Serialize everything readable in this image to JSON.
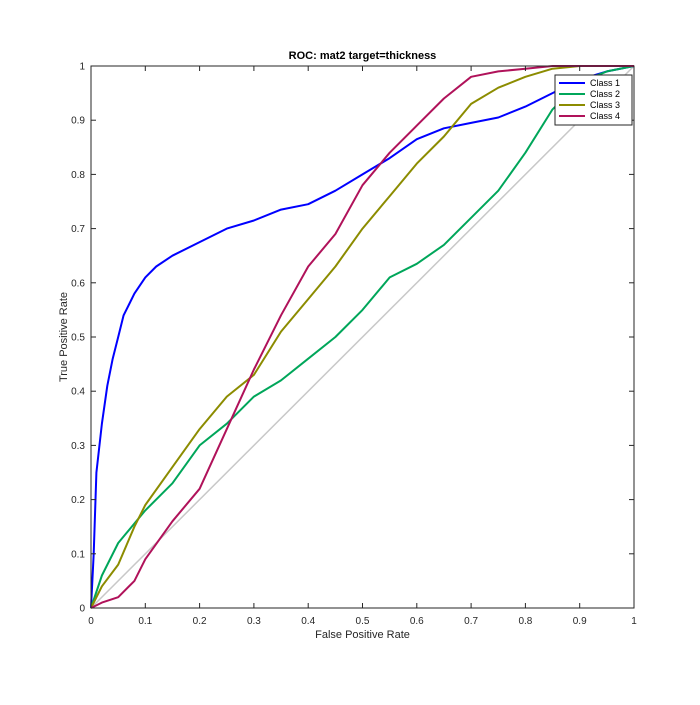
{
  "chart_data": {
    "type": "line",
    "title": "ROC: mat2 target=thickness",
    "xlabel": "False Positive Rate",
    "ylabel": "True Positive Rate",
    "xlim": [
      0,
      1
    ],
    "ylim": [
      0,
      1
    ],
    "xticks": [
      0,
      0.1,
      0.2,
      0.3,
      0.4,
      0.5,
      0.6,
      0.7,
      0.8,
      0.9,
      1
    ],
    "yticks": [
      0,
      0.1,
      0.2,
      0.3,
      0.4,
      0.5,
      0.6,
      0.7,
      0.8,
      0.9,
      1
    ],
    "xtick_labels": [
      "0",
      "0.1",
      "0.2",
      "0.3",
      "0.4",
      "0.5",
      "0.6",
      "0.7",
      "0.8",
      "0.9",
      "1"
    ],
    "ytick_labels": [
      "0",
      "0.1",
      "0.2",
      "0.3",
      "0.4",
      "0.5",
      "0.6",
      "0.7",
      "0.8",
      "0.9",
      "1"
    ],
    "grid": false,
    "legend_position": "top-right",
    "reference_line": {
      "x": [
        0,
        1
      ],
      "y": [
        0,
        1
      ],
      "color": "#c8c8c8"
    },
    "series": [
      {
        "name": "Class 1",
        "color": "#0000ff",
        "x": [
          0,
          0.005,
          0.01,
          0.02,
          0.03,
          0.04,
          0.05,
          0.06,
          0.07,
          0.08,
          0.1,
          0.12,
          0.15,
          0.2,
          0.25,
          0.3,
          0.35,
          0.4,
          0.45,
          0.5,
          0.55,
          0.6,
          0.65,
          0.7,
          0.75,
          0.8,
          0.85,
          0.9,
          0.95,
          1
        ],
        "y": [
          0,
          0.1,
          0.25,
          0.34,
          0.41,
          0.46,
          0.5,
          0.54,
          0.56,
          0.58,
          0.61,
          0.63,
          0.65,
          0.675,
          0.7,
          0.715,
          0.735,
          0.745,
          0.77,
          0.8,
          0.83,
          0.865,
          0.885,
          0.895,
          0.905,
          0.925,
          0.95,
          0.975,
          0.99,
          1
        ]
      },
      {
        "name": "Class 2",
        "color": "#00a65a",
        "x": [
          0,
          0.02,
          0.05,
          0.1,
          0.15,
          0.2,
          0.25,
          0.3,
          0.35,
          0.4,
          0.45,
          0.5,
          0.55,
          0.6,
          0.65,
          0.7,
          0.75,
          0.8,
          0.85,
          0.9,
          0.95,
          1
        ],
        "y": [
          0,
          0.06,
          0.12,
          0.18,
          0.23,
          0.3,
          0.34,
          0.39,
          0.42,
          0.46,
          0.5,
          0.55,
          0.61,
          0.635,
          0.67,
          0.72,
          0.77,
          0.84,
          0.92,
          0.97,
          0.99,
          1
        ]
      },
      {
        "name": "Class 3",
        "color": "#8c8c00",
        "x": [
          0,
          0.02,
          0.05,
          0.08,
          0.1,
          0.15,
          0.2,
          0.25,
          0.3,
          0.35,
          0.4,
          0.45,
          0.5,
          0.55,
          0.6,
          0.65,
          0.7,
          0.75,
          0.8,
          0.85,
          0.9,
          0.95,
          1
        ],
        "y": [
          0,
          0.04,
          0.08,
          0.15,
          0.19,
          0.26,
          0.33,
          0.39,
          0.43,
          0.51,
          0.57,
          0.63,
          0.7,
          0.76,
          0.82,
          0.87,
          0.93,
          0.96,
          0.98,
          0.995,
          1,
          1,
          1
        ]
      },
      {
        "name": "Class 4",
        "color": "#b0125a",
        "x": [
          0,
          0.02,
          0.05,
          0.08,
          0.1,
          0.15,
          0.2,
          0.25,
          0.3,
          0.35,
          0.4,
          0.45,
          0.5,
          0.55,
          0.6,
          0.65,
          0.7,
          0.75,
          0.8,
          0.85,
          0.9,
          0.95,
          1
        ],
        "y": [
          0,
          0.01,
          0.02,
          0.05,
          0.09,
          0.16,
          0.22,
          0.33,
          0.44,
          0.54,
          0.63,
          0.69,
          0.78,
          0.84,
          0.89,
          0.94,
          0.98,
          0.99,
          0.995,
          1,
          1,
          1,
          1
        ]
      }
    ]
  }
}
